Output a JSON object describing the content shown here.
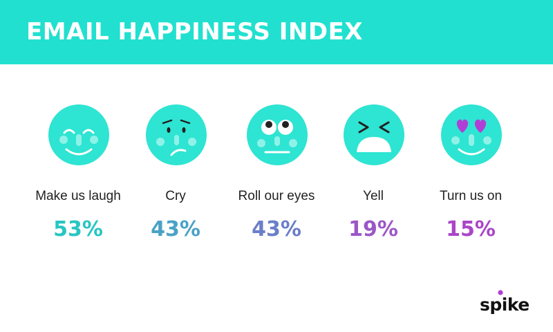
{
  "header": {
    "title": "EMAIL HAPPINESS INDEX"
  },
  "chart_data": {
    "type": "table",
    "title": "EMAIL HAPPINESS INDEX",
    "categories": [
      "Make us laugh",
      "Cry",
      "Roll our eyes",
      "Yell",
      "Turn us on"
    ],
    "values": [
      53,
      43,
      43,
      19,
      15
    ],
    "items": [
      {
        "label": "Make us laugh",
        "value": 53,
        "display": "53%",
        "color": "#27c6c2",
        "icon": "laughing-face-icon"
      },
      {
        "label": "Cry",
        "value": 43,
        "display": "43%",
        "color": "#4aa2c6",
        "icon": "worried-face-icon"
      },
      {
        "label": "Roll our eyes",
        "value": 43,
        "display": "43%",
        "color": "#6b7ec8",
        "icon": "eye-roll-face-icon"
      },
      {
        "label": "Yell",
        "value": 19,
        "display": "19%",
        "color": "#9b57c8",
        "icon": "yelling-face-icon"
      },
      {
        "label": "Turn us on",
        "value": 15,
        "display": "15%",
        "color": "#aa45c9",
        "icon": "heart-eyes-face-icon"
      }
    ]
  },
  "colors": {
    "header": "#22e0cf",
    "face": "#2ee4d2",
    "cheek": "#8ff2e8",
    "heart": "#b13fd6"
  },
  "brand": {
    "logo_text": "spike"
  }
}
